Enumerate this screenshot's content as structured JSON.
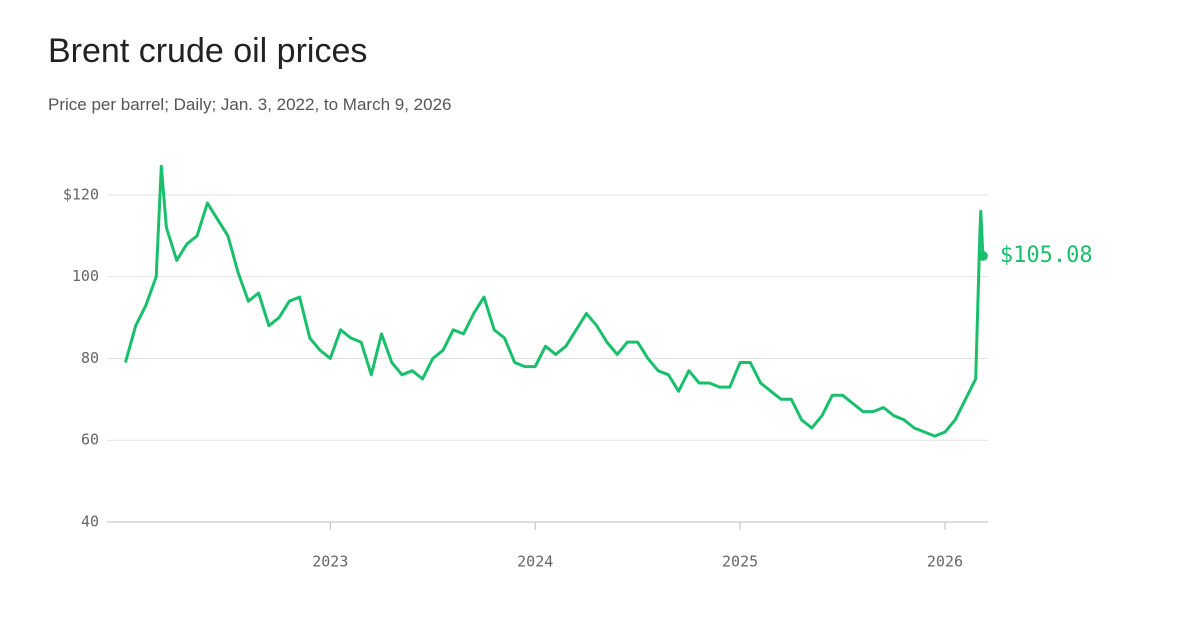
{
  "chart_data": {
    "type": "line",
    "title": "Brent crude oil prices",
    "subtitle": "Price per barrel; Daily; Jan. 3, 2022, to March 9, 2026",
    "x": [
      2022.0,
      2022.05,
      2022.1,
      2022.15,
      2022.175,
      2022.2,
      2022.25,
      2022.3,
      2022.35,
      2022.4,
      2022.45,
      2022.5,
      2022.55,
      2022.6,
      2022.65,
      2022.7,
      2022.75,
      2022.8,
      2022.85,
      2022.9,
      2022.95,
      2023.0,
      2023.05,
      2023.1,
      2023.15,
      2023.2,
      2023.25,
      2023.3,
      2023.35,
      2023.4,
      2023.45,
      2023.5,
      2023.55,
      2023.6,
      2023.65,
      2023.7,
      2023.75,
      2023.8,
      2023.85,
      2023.9,
      2023.95,
      2024.0,
      2024.05,
      2024.1,
      2024.15,
      2024.2,
      2024.25,
      2024.3,
      2024.35,
      2024.4,
      2024.45,
      2024.5,
      2024.55,
      2024.6,
      2024.65,
      2024.7,
      2024.75,
      2024.8,
      2024.85,
      2024.9,
      2024.95,
      2025.0,
      2025.05,
      2025.1,
      2025.15,
      2025.2,
      2025.25,
      2025.3,
      2025.35,
      2025.4,
      2025.45,
      2025.5,
      2025.55,
      2025.6,
      2025.65,
      2025.7,
      2025.75,
      2025.8,
      2025.85,
      2025.9,
      2025.95,
      2026.0,
      2026.05,
      2026.1,
      2026.15,
      2026.17,
      2026.175,
      2026.185
    ],
    "series": [
      {
        "name": "Brent",
        "color": "#19bf6b",
        "values": [
          79,
          88,
          93,
          100,
          127,
          112,
          104,
          108,
          110,
          118,
          114,
          110,
          101,
          94,
          96,
          88,
          90,
          94,
          95,
          85,
          82,
          80,
          87,
          85,
          84,
          76,
          86,
          79,
          76,
          77,
          75,
          80,
          82,
          87,
          86,
          91,
          95,
          87,
          85,
          79,
          78,
          78,
          83,
          81,
          83,
          87,
          91,
          88,
          84,
          81,
          84,
          84,
          80,
          77,
          76,
          72,
          77,
          74,
          74,
          73,
          73,
          79,
          79,
          74,
          72,
          70,
          70,
          65,
          63,
          66,
          71,
          71,
          69,
          67,
          67,
          68,
          66,
          65,
          63,
          62,
          61,
          62,
          65,
          70,
          75,
          110,
          116,
          105.08
        ]
      }
    ],
    "annotations": [
      {
        "x": 2026.185,
        "value": 105.08,
        "label": "$105.08"
      }
    ],
    "xlim": [
      2021.91,
      2026.21
    ],
    "xticks": [
      2023,
      2024,
      2025,
      2026
    ],
    "ylim": [
      40,
      130
    ],
    "yticks": [
      40,
      60,
      80,
      100,
      {
        "value": 120,
        "label": "$120"
      }
    ],
    "grid": true
  }
}
